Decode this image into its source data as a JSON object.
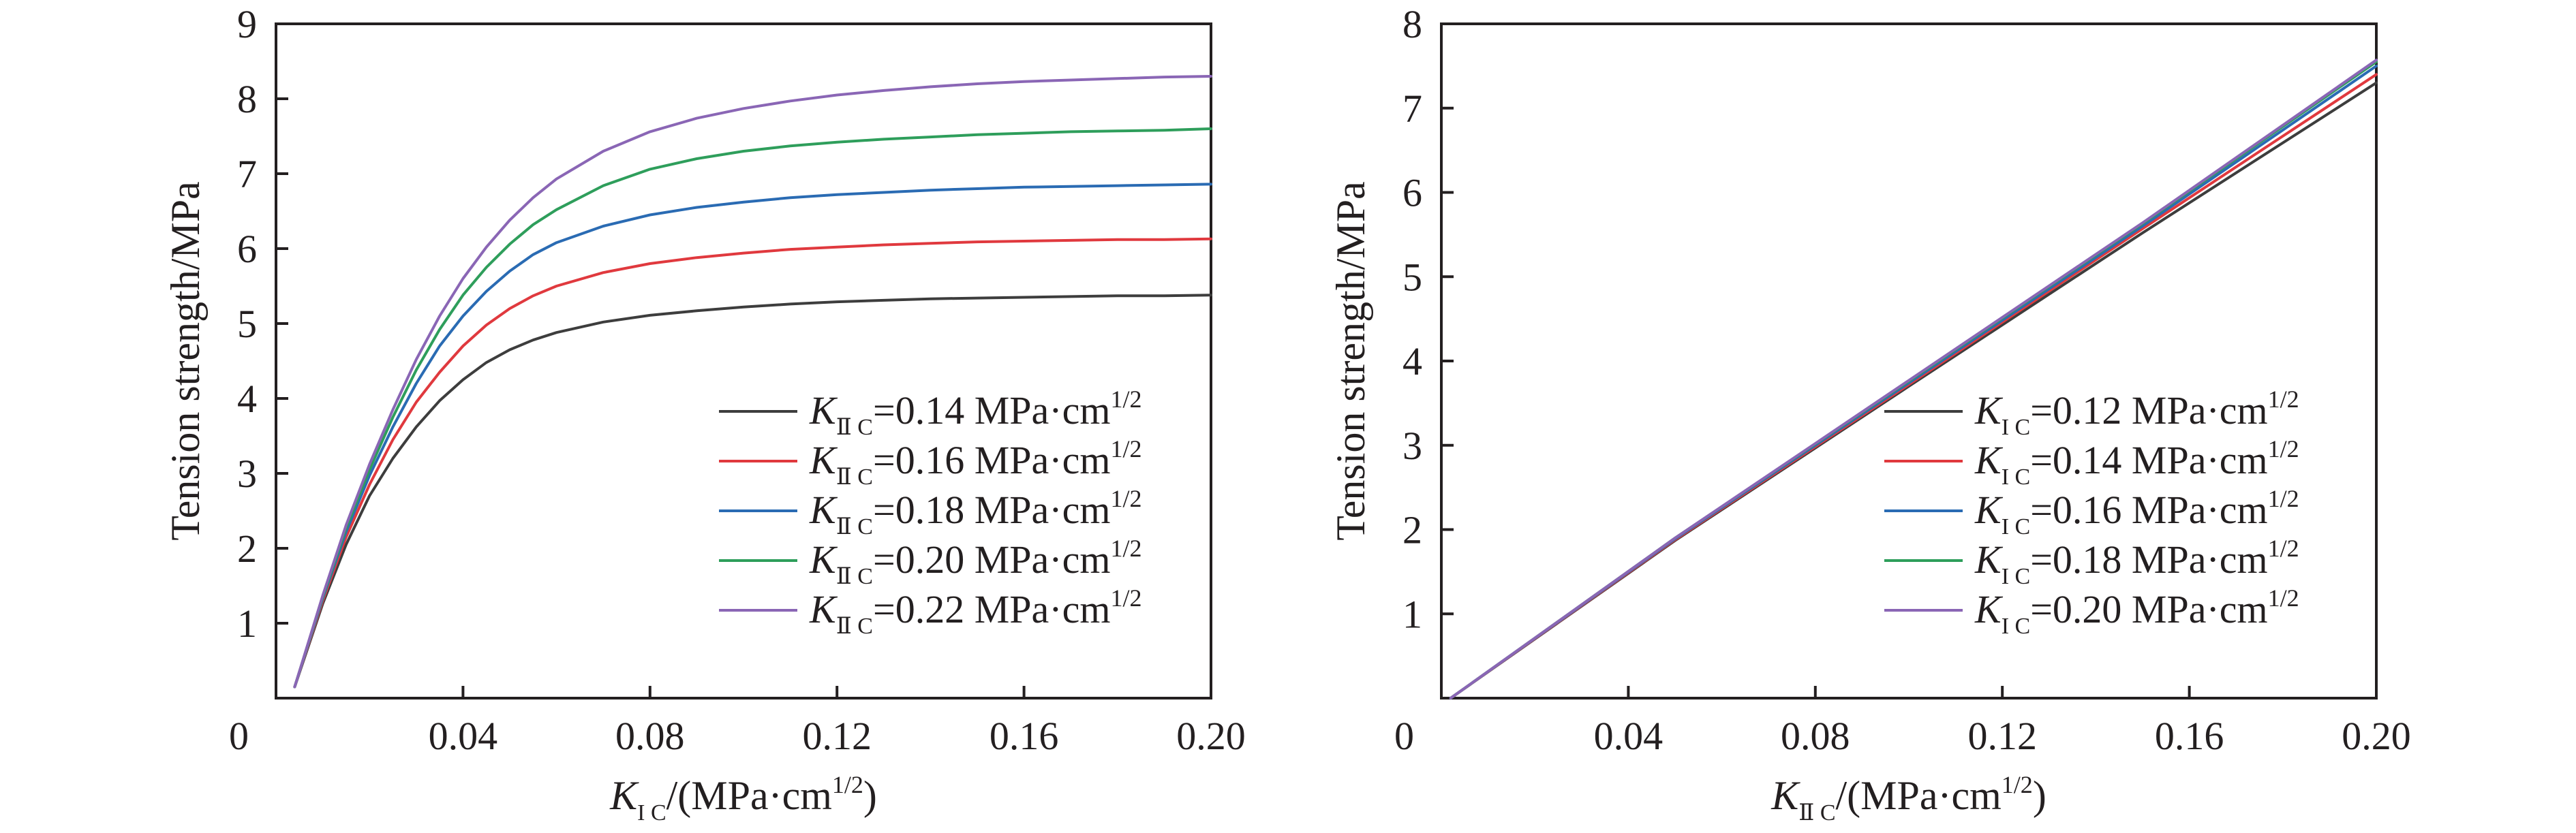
{
  "chart_data": [
    {
      "type": "line",
      "title": "",
      "xlabel": {
        "prefix": "K",
        "sub": "I C",
        "suffix": "/(MPa·cm",
        "sup": "1/2",
        "end": ")"
      },
      "ylabel": "Tension strength/MPa",
      "xlim": [
        0,
        0.2
      ],
      "ylim": [
        0,
        9
      ],
      "x_ticks": [
        "0.04",
        "0.08",
        "0.12",
        "0.16",
        "0.20"
      ],
      "x_tick_values": [
        0.04,
        0.08,
        0.12,
        0.16,
        0.2
      ],
      "y_ticks": [
        "1",
        "2",
        "3",
        "4",
        "5",
        "6",
        "7",
        "8",
        "9"
      ],
      "y_tick_values": [
        1,
        2,
        3,
        4,
        5,
        6,
        7,
        8,
        9
      ],
      "origin_label": "0",
      "grid": false,
      "legend_position": "bottom-right",
      "legend_symbol": "K",
      "legend_sub": "Ⅱ C",
      "legend_unit": " MPa·cm",
      "legend_sup": "1/2",
      "x": [
        0.004,
        0.01,
        0.015,
        0.02,
        0.025,
        0.03,
        0.035,
        0.04,
        0.045,
        0.05,
        0.055,
        0.06,
        0.07,
        0.08,
        0.09,
        0.1,
        0.11,
        0.12,
        0.13,
        0.14,
        0.15,
        0.16,
        0.17,
        0.18,
        0.19,
        0.2
      ],
      "series": [
        {
          "name": "=0.14",
          "color": "#3d3d3d",
          "values": [
            0.15,
            1.26,
            2.05,
            2.7,
            3.2,
            3.62,
            3.97,
            4.25,
            4.48,
            4.65,
            4.78,
            4.88,
            5.02,
            5.11,
            5.17,
            5.22,
            5.26,
            5.29,
            5.31,
            5.33,
            5.34,
            5.35,
            5.36,
            5.37,
            5.37,
            5.38
          ]
        },
        {
          "name": "=0.16",
          "color": "#e0393e",
          "values": [
            0.15,
            1.3,
            2.15,
            2.85,
            3.45,
            3.95,
            4.35,
            4.7,
            4.98,
            5.2,
            5.37,
            5.5,
            5.68,
            5.8,
            5.88,
            5.94,
            5.99,
            6.02,
            6.05,
            6.07,
            6.09,
            6.1,
            6.11,
            6.12,
            6.12,
            6.13
          ]
        },
        {
          "name": "=0.18",
          "color": "#2a6bb3",
          "values": [
            0.15,
            1.33,
            2.22,
            2.97,
            3.62,
            4.2,
            4.7,
            5.1,
            5.43,
            5.7,
            5.92,
            6.08,
            6.3,
            6.45,
            6.55,
            6.62,
            6.68,
            6.72,
            6.75,
            6.78,
            6.8,
            6.82,
            6.83,
            6.84,
            6.85,
            6.86
          ]
        },
        {
          "name": "=0.20",
          "color": "#2e9e5b",
          "values": [
            0.15,
            1.35,
            2.27,
            3.05,
            3.75,
            4.38,
            4.92,
            5.38,
            5.75,
            6.06,
            6.32,
            6.52,
            6.84,
            7.06,
            7.2,
            7.3,
            7.37,
            7.42,
            7.46,
            7.49,
            7.52,
            7.54,
            7.56,
            7.57,
            7.58,
            7.6
          ]
        },
        {
          "name": "=0.22",
          "color": "#8a66b5",
          "values": [
            0.15,
            1.37,
            2.31,
            3.12,
            3.85,
            4.52,
            5.1,
            5.6,
            6.02,
            6.38,
            6.68,
            6.93,
            7.3,
            7.56,
            7.74,
            7.87,
            7.97,
            8.05,
            8.11,
            8.16,
            8.2,
            8.23,
            8.25,
            8.27,
            8.29,
            8.3
          ]
        }
      ]
    },
    {
      "type": "line",
      "title": "",
      "xlabel": {
        "prefix": "K",
        "sub": "Ⅱ C",
        "suffix": "/(MPa·cm",
        "sup": "1/2",
        "end": ")"
      },
      "ylabel": "Tension strength/MPa",
      "xlim": [
        0,
        0.2
      ],
      "ylim": [
        0,
        8
      ],
      "x_ticks": [
        "0.04",
        "0.08",
        "0.12",
        "0.16",
        "0.20"
      ],
      "x_tick_values": [
        0.04,
        0.08,
        0.12,
        0.16,
        0.2
      ],
      "y_ticks": [
        "1",
        "2",
        "3",
        "4",
        "5",
        "6",
        "7",
        "8"
      ],
      "y_tick_values": [
        1,
        2,
        3,
        4,
        5,
        6,
        7,
        8
      ],
      "origin_label": "0",
      "grid": false,
      "legend_position": "bottom-right",
      "legend_symbol": "K",
      "legend_sub": "I C",
      "legend_unit": " MPa·cm",
      "legend_sup": "1/2",
      "x": [
        0.002,
        0.05,
        0.1,
        0.15,
        0.2
      ],
      "series": [
        {
          "name": "=0.12",
          "color": "#3d3d3d",
          "values": [
            0.0,
            1.87,
            3.7,
            5.52,
            7.3
          ]
        },
        {
          "name": "=0.14",
          "color": "#e0393e",
          "values": [
            0.0,
            1.88,
            3.72,
            5.57,
            7.4
          ]
        },
        {
          "name": "=0.16",
          "color": "#2a6bb3",
          "values": [
            0.0,
            1.89,
            3.74,
            5.6,
            7.5
          ]
        },
        {
          "name": "=0.18",
          "color": "#2e9e5b",
          "values": [
            0.0,
            1.9,
            3.76,
            5.63,
            7.55
          ]
        },
        {
          "name": "=0.20",
          "color": "#8a66b5",
          "values": [
            0.0,
            1.9,
            3.77,
            5.64,
            7.57
          ]
        }
      ]
    }
  ]
}
